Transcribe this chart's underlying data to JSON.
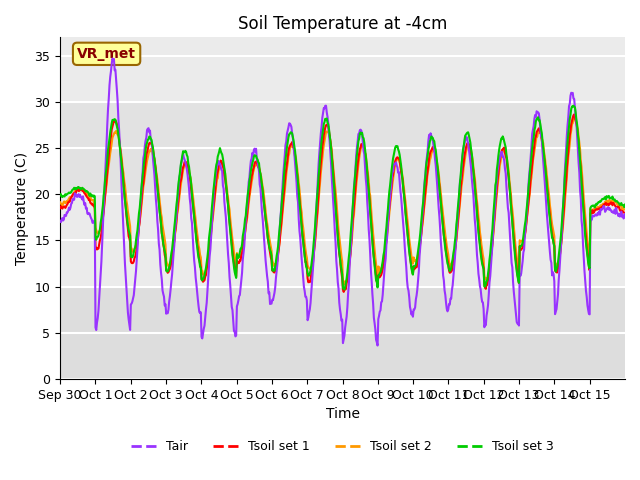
{
  "title": "Soil Temperature at -4cm",
  "xlabel": "Time",
  "ylabel": "Temperature (C)",
  "ylim": [
    0,
    37
  ],
  "yticks": [
    0,
    5,
    10,
    15,
    20,
    25,
    30,
    35
  ],
  "xtick_labels": [
    "Sep 30",
    "Oct 1",
    "Oct 2",
    "Oct 3",
    "Oct 4",
    "Oct 5",
    "Oct 6",
    "Oct 7",
    "Oct 8",
    "Oct 9",
    "Oct 10",
    "Oct 11",
    "Oct 12",
    "Oct 13",
    "Oct 14",
    "Oct 15"
  ],
  "legend_labels": [
    "Tair",
    "Tsoil set 1",
    "Tsoil set 2",
    "Tsoil set 3"
  ],
  "colors": {
    "Tair": "#9933FF",
    "Tsoil1": "#FF0000",
    "Tsoil2": "#FF9900",
    "Tsoil3": "#00CC00"
  },
  "annotation_text": "VR_met",
  "annotation_bg": "#FFFF99",
  "annotation_border": "#996600",
  "plot_bg": "#EBEBEB",
  "grid_color": "#FFFFFF",
  "linewidth": 1.5,
  "title_fontsize": 12,
  "tick_fontsize": 9,
  "label_fontsize": 10
}
